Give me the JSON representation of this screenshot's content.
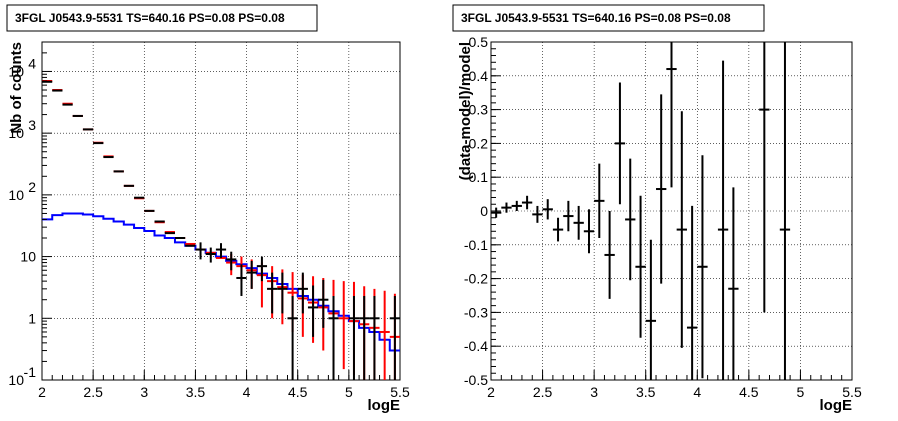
{
  "chart_data": [
    {
      "type": "scatter",
      "title": "3FGL J0543.9-5531 TS=640.16 PS=0.08 PS=0.08",
      "xlabel": "logE",
      "ylabel": "Nb of counts",
      "xlim": [
        2,
        5.5
      ],
      "ylim": [
        0.1,
        30000
      ],
      "yscale": "log",
      "grid": true,
      "x_ticks": [
        "2",
        "2.5",
        "3",
        "3.5",
        "4",
        "4.5",
        "5",
        "5.5"
      ],
      "y_ticks": [
        "10^-1",
        "1",
        "10",
        "10^2",
        "10^3",
        "10^4"
      ],
      "series": [
        {
          "kind": "step",
          "color": "#0000ff",
          "bin_edges": [
            2.0,
            2.1,
            2.2,
            2.3,
            2.4,
            2.5,
            2.6,
            2.7,
            2.8,
            2.9,
            3.0,
            3.1,
            3.2,
            3.3,
            3.4,
            3.5,
            3.6,
            3.7,
            3.8,
            3.9,
            4.0,
            4.1,
            4.2,
            4.3,
            4.4,
            4.5,
            4.6,
            4.7,
            4.8,
            4.9,
            5.0,
            5.1,
            5.2,
            5.3,
            5.4,
            5.5
          ],
          "values": [
            40,
            47,
            50,
            50,
            48,
            45,
            41,
            37,
            33,
            29,
            26,
            22,
            20,
            17,
            15,
            13,
            11.5,
            10,
            8.5,
            7.5,
            6.5,
            5.3,
            4.5,
            3.6,
            3.0,
            2.3,
            2.0,
            1.6,
            1.3,
            1.1,
            0.9,
            0.7,
            0.6,
            0.45,
            0.3
          ]
        },
        {
          "kind": "errorbar",
          "color": "#ff0000",
          "x": [
            2.05,
            2.15,
            2.25,
            2.35,
            2.45,
            2.55,
            2.65,
            2.75,
            2.85,
            2.95,
            3.05,
            3.15,
            3.25,
            3.35,
            3.45,
            3.55,
            3.65,
            3.75,
            3.85,
            3.95,
            4.05,
            4.15,
            4.25,
            4.35,
            4.45,
            4.55,
            4.65,
            4.75,
            4.85,
            4.95,
            5.05,
            5.15,
            5.25,
            5.35,
            5.45
          ],
          "y": [
            7000,
            5000,
            3000,
            1900,
            1150,
            700,
            420,
            240,
            140,
            88,
            55,
            36,
            25,
            20,
            16,
            13,
            11.5,
            9.5,
            8,
            7,
            6,
            5,
            4,
            3.2,
            2.6,
            2.1,
            1.8,
            1.5,
            1.2,
            1.0,
            0.9,
            0.8,
            0.7,
            0.6,
            0.5
          ],
          "err_low": [
            0,
            0,
            0,
            0,
            0,
            0,
            0,
            0,
            0,
            0,
            0,
            0,
            0,
            0,
            0,
            0,
            0,
            0,
            3,
            3,
            3,
            3.5,
            3,
            2.4,
            2.0,
            1.6,
            1.4,
            1.2,
            1.0,
            0.85,
            0.78,
            0.7,
            0.62,
            0.55,
            0.46
          ],
          "err_high": [
            0,
            0,
            0,
            0,
            0,
            0,
            0,
            0,
            0,
            0,
            0,
            0,
            0,
            0,
            0,
            0,
            0,
            0,
            3,
            3,
            3,
            3,
            3,
            3,
            3,
            3,
            3,
            3,
            3,
            3,
            3,
            2.5,
            2.3,
            2.2,
            2.0
          ]
        },
        {
          "kind": "errorbar",
          "color": "#000000",
          "x": [
            2.05,
            2.15,
            2.25,
            2.35,
            2.45,
            2.55,
            2.65,
            2.75,
            2.85,
            2.95,
            3.05,
            3.15,
            3.25,
            3.35,
            3.45,
            3.55,
            3.65,
            3.75,
            3.85,
            3.95,
            4.05,
            4.15,
            4.25,
            4.35,
            4.45,
            4.55,
            4.65,
            4.75,
            4.85,
            4.95,
            5.05,
            5.15,
            5.25,
            5.35,
            5.45
          ],
          "y": [
            6800,
            4900,
            2900,
            1900,
            1150,
            690,
            410,
            240,
            140,
            90,
            55,
            37,
            24,
            20,
            15,
            13,
            11,
            13,
            9,
            4.5,
            5.5,
            7,
            3,
            3,
            1,
            3,
            1.5,
            2,
            1,
            0,
            1,
            1,
            1,
            0,
            1
          ],
          "err_low": [
            0,
            0,
            0,
            0,
            0,
            0,
            0,
            0,
            0,
            0,
            0,
            0,
            0,
            0,
            0,
            4,
            3,
            3.5,
            3,
            2.2,
            2.5,
            3,
            1.8,
            1.8,
            0.9,
            1.8,
            1.0,
            1.3,
            0.9,
            0,
            0.9,
            0.9,
            0.9,
            0,
            0.9
          ],
          "err_high": [
            0,
            0,
            0,
            0,
            0,
            0,
            0,
            0,
            0,
            0,
            0,
            0,
            0,
            0,
            0,
            4,
            3,
            3.5,
            3,
            3,
            3,
            3,
            2.5,
            2.5,
            1.3,
            2.5,
            1.9,
            2.2,
            1.3,
            0,
            1.3,
            1.3,
            1.3,
            0,
            1.3
          ]
        }
      ]
    },
    {
      "type": "scatter",
      "title": "3FGL J0543.9-5531 TS=640.16 PS=0.08 PS=0.08",
      "xlabel": "logE",
      "ylabel": "(data-model)/model",
      "xlim": [
        2,
        5.5
      ],
      "ylim": [
        -0.5,
        0.5
      ],
      "grid": true,
      "x_ticks": [
        "2",
        "2.5",
        "3",
        "3.5",
        "4",
        "4.5",
        "5",
        "5.5"
      ],
      "y_ticks": [
        "-0.5",
        "-0.4",
        "-0.3",
        "-0.2",
        "-0.1",
        "0",
        "0.1",
        "0.2",
        "0.3",
        "0.4",
        "0.5"
      ],
      "series": [
        {
          "kind": "errorbar",
          "color": "#000000",
          "x": [
            2.05,
            2.15,
            2.25,
            2.35,
            2.45,
            2.55,
            2.65,
            2.75,
            2.85,
            2.95,
            3.05,
            3.15,
            3.25,
            3.35,
            3.45,
            3.55,
            3.65,
            3.75,
            3.85,
            3.95,
            4.05,
            4.25,
            4.35,
            4.65,
            4.85
          ],
          "y": [
            -0.005,
            0.01,
            0.015,
            0.025,
            -0.01,
            0.005,
            -0.055,
            -0.015,
            -0.035,
            -0.06,
            0.03,
            -0.13,
            0.2,
            -0.025,
            -0.165,
            -0.325,
            0.065,
            0.42,
            -0.055,
            -0.345,
            -0.165,
            -0.055,
            -0.23,
            0.3,
            -0.055
          ],
          "err": [
            0.015,
            0.015,
            0.015,
            0.02,
            0.025,
            0.03,
            0.035,
            0.045,
            0.05,
            0.065,
            0.11,
            0.13,
            0.18,
            0.18,
            0.21,
            0.24,
            0.28,
            0.35,
            0.35,
            0.36,
            0.33,
            0.5,
            0.3,
            0.6,
            0.6
          ]
        }
      ]
    }
  ]
}
